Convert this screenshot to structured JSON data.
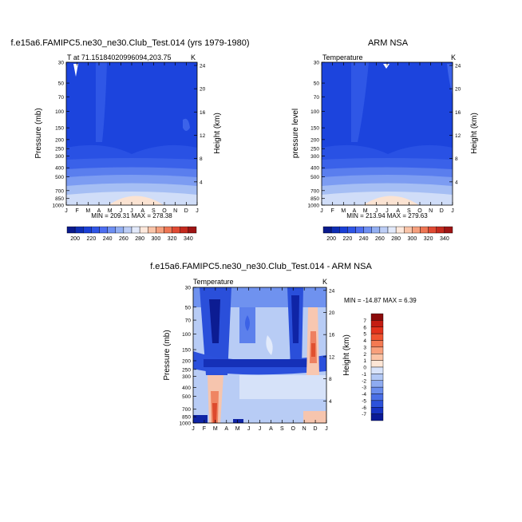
{
  "figure": {
    "months": [
      "J",
      "F",
      "M",
      "A",
      "M",
      "J",
      "J",
      "A",
      "S",
      "O",
      "N",
      "D",
      "J"
    ],
    "pressure_ticks": [
      "30",
      "50",
      "70",
      "100",
      "150",
      "200",
      "250",
      "300",
      "400",
      "500",
      "700",
      "850",
      "1000"
    ],
    "height_ticks_top": [
      "24",
      "20",
      "16",
      "12",
      "8",
      "4"
    ],
    "height_ticks_bottom": [
      "24",
      "20",
      "16",
      "12",
      "8",
      "4"
    ]
  },
  "panels": [
    {
      "title": "f.e15a6.FAMIPC5.ne30_ne30.Club_Test.014 (yrs 1979-1980)",
      "left_label": "T at 71.15184020996094,203.75",
      "right_label": "K",
      "ylabel": "Pressure (mb)",
      "y2label": "Height (km)",
      "minmax": "MIN = 209.31 MAX = 278.38"
    },
    {
      "title": "ARM NSA",
      "left_label": "Temperature",
      "right_label": "K",
      "ylabel": "pressure level",
      "y2label": "Height (km)",
      "minmax": "MIN = 213.94 MAX = 279.63"
    },
    {
      "title": "f.e15a6.FAMIPC5.ne30_ne30.Club_Test.014 - ARM NSA",
      "left_label": "Temperature",
      "right_label": "K",
      "ylabel": "Pressure (mb)",
      "y2label": "Height (km)",
      "minmax": "MIN = -14.87 MAX =   6.39"
    }
  ],
  "colorbar_abs": {
    "labels": [
      "200",
      "220",
      "240",
      "260",
      "280",
      "300",
      "320",
      "340"
    ],
    "colors": [
      "#0a1a8c",
      "#0e2db4",
      "#1a3fd6",
      "#2f55e6",
      "#4d6ef0",
      "#6e8ff2",
      "#93aff2",
      "#bccdf5",
      "#e2e9fa",
      "#fde8dc",
      "#f9c4a8",
      "#f5a07e",
      "#ee7654",
      "#e04a33",
      "#c42a1e",
      "#9e1414"
    ]
  },
  "colorbar_diff": {
    "labels": [
      "7",
      "6",
      "5",
      "4",
      "3",
      "2",
      "1",
      "0",
      "-1",
      "-2",
      "-3",
      "-4",
      "-5",
      "-6",
      "-7"
    ],
    "colors": [
      "#8b0a0a",
      "#c41c12",
      "#e2321c",
      "#ef5330",
      "#f47a52",
      "#f8a07c",
      "#fbc4a6",
      "#fde6d6",
      "#d8e3fa",
      "#b2c8f5",
      "#8eabf0",
      "#6a8ded",
      "#4a6fe6",
      "#2d52da",
      "#1733c2",
      "#0b1a96"
    ]
  },
  "chart_data": [
    {
      "type": "heatmap",
      "title": "f.e15a6.FAMIPC5.ne30_ne30.Club_Test.014 (yrs 1979-1980)",
      "xlabel": "",
      "ylabel": "Pressure (mb)",
      "x": [
        "J",
        "F",
        "M",
        "A",
        "M",
        "J",
        "J",
        "A",
        "S",
        "O",
        "N",
        "D",
        "J"
      ],
      "y": [
        30,
        50,
        70,
        100,
        150,
        200,
        250,
        300,
        400,
        500,
        700,
        850,
        1000
      ],
      "ylim": [
        1000,
        30
      ],
      "min": 209.31,
      "max": 278.38,
      "units": "K"
    },
    {
      "type": "heatmap",
      "title": "ARM NSA",
      "xlabel": "",
      "ylabel": "pressure level",
      "x": [
        "J",
        "F",
        "M",
        "A",
        "M",
        "J",
        "J",
        "A",
        "S",
        "O",
        "N",
        "D",
        "J"
      ],
      "y": [
        30,
        50,
        70,
        100,
        150,
        200,
        250,
        300,
        400,
        500,
        700,
        850,
        1000
      ],
      "ylim": [
        1000,
        30
      ],
      "min": 213.94,
      "max": 279.63,
      "units": "K"
    },
    {
      "type": "heatmap",
      "title": "f.e15a6.FAMIPC5.ne30_ne30.Club_Test.014 - ARM NSA",
      "xlabel": "",
      "ylabel": "Pressure (mb)",
      "x": [
        "J",
        "F",
        "M",
        "A",
        "M",
        "J",
        "J",
        "A",
        "S",
        "O",
        "N",
        "D",
        "J"
      ],
      "y": [
        30,
        50,
        70,
        100,
        150,
        200,
        250,
        300,
        400,
        500,
        700,
        850,
        1000
      ],
      "ylim": [
        1000,
        30
      ],
      "min": -14.87,
      "max": 6.39,
      "units": "K"
    }
  ]
}
